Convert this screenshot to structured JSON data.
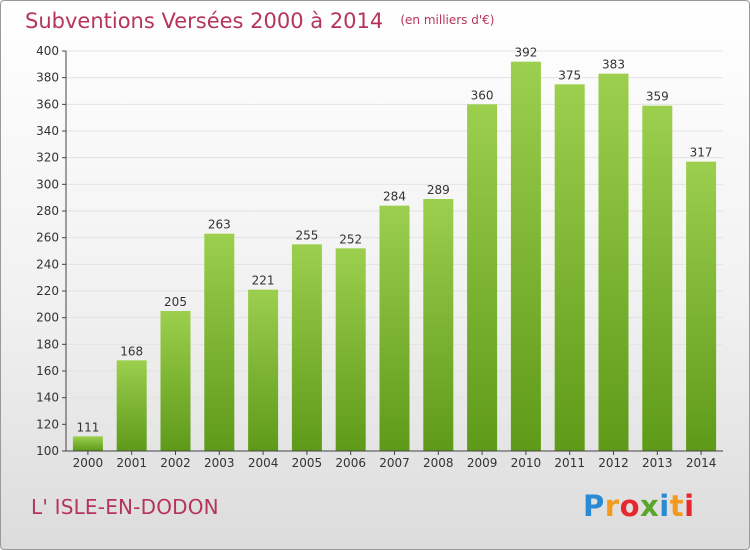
{
  "title": "Subventions Versées 2000 à 2014",
  "subtitle": "(en milliers d'€)",
  "commune": "L' ISLE-EN-DODON",
  "logo": {
    "text": "Proxiti",
    "letters": [
      "P",
      "r",
      "o",
      "x",
      "i",
      "t",
      "i"
    ],
    "colors": [
      "#2a8ad4",
      "#f39a1e",
      "#e8272c",
      "#5aa52a",
      "#2a8ad4",
      "#f39a1e",
      "#e8272c"
    ]
  },
  "colors": {
    "title": "#b5355a",
    "bar_top": "#9ccf4e",
    "bar_bottom": "#5e9a18",
    "grid": "#e3e3e3",
    "axis": "#444444"
  },
  "chart_data": {
    "type": "bar",
    "title": "Subventions Versées 2000 à 2014",
    "subtitle": "(en milliers d'€)",
    "categories": [
      "2000",
      "2001",
      "2002",
      "2003",
      "2004",
      "2005",
      "2006",
      "2007",
      "2008",
      "2009",
      "2010",
      "2011",
      "2012",
      "2013",
      "2014"
    ],
    "values": [
      111,
      168,
      205,
      263,
      221,
      255,
      252,
      284,
      289,
      360,
      392,
      375,
      383,
      359,
      317
    ],
    "ylim": [
      100,
      400
    ],
    "yticks": [
      100,
      120,
      140,
      160,
      180,
      200,
      220,
      240,
      260,
      280,
      300,
      320,
      340,
      360,
      380,
      400
    ],
    "grid": true,
    "data_labels": true
  }
}
